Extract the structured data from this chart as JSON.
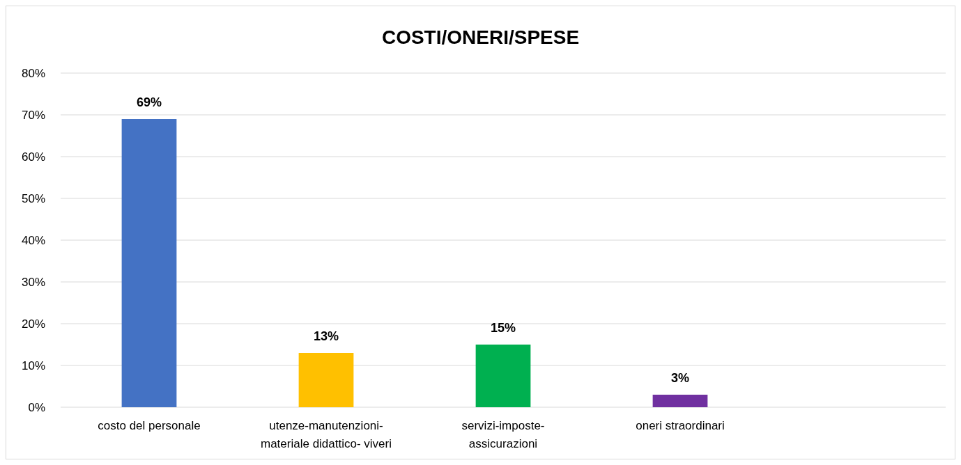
{
  "chart_data": {
    "type": "bar",
    "title": "COSTI/ONERI/SPESE",
    "categories": [
      "costo del personale",
      "utenze-manutenzioni-\nmateriale didattico- viveri",
      "servizi-imposte-\nassicurazioni",
      "oneri straordinari",
      null
    ],
    "values": [
      69,
      13,
      15,
      3,
      null
    ],
    "colors": [
      "#4472c4",
      "#ffc000",
      "#00b050",
      "#7030a0",
      null
    ],
    "value_labels": [
      "69%",
      "13%",
      "15%",
      "3%",
      null
    ],
    "ylim": [
      0,
      80
    ],
    "yticks": [
      {
        "value": 0,
        "label": "0%"
      },
      {
        "value": 10,
        "label": "10%"
      },
      {
        "value": 20,
        "label": "20%"
      },
      {
        "value": 30,
        "label": "30%"
      },
      {
        "value": 40,
        "label": "40%"
      },
      {
        "value": 50,
        "label": "50%"
      },
      {
        "value": 60,
        "label": "60%"
      },
      {
        "value": 70,
        "label": "70%"
      },
      {
        "value": 80,
        "label": "80%"
      }
    ],
    "grid": "y"
  }
}
